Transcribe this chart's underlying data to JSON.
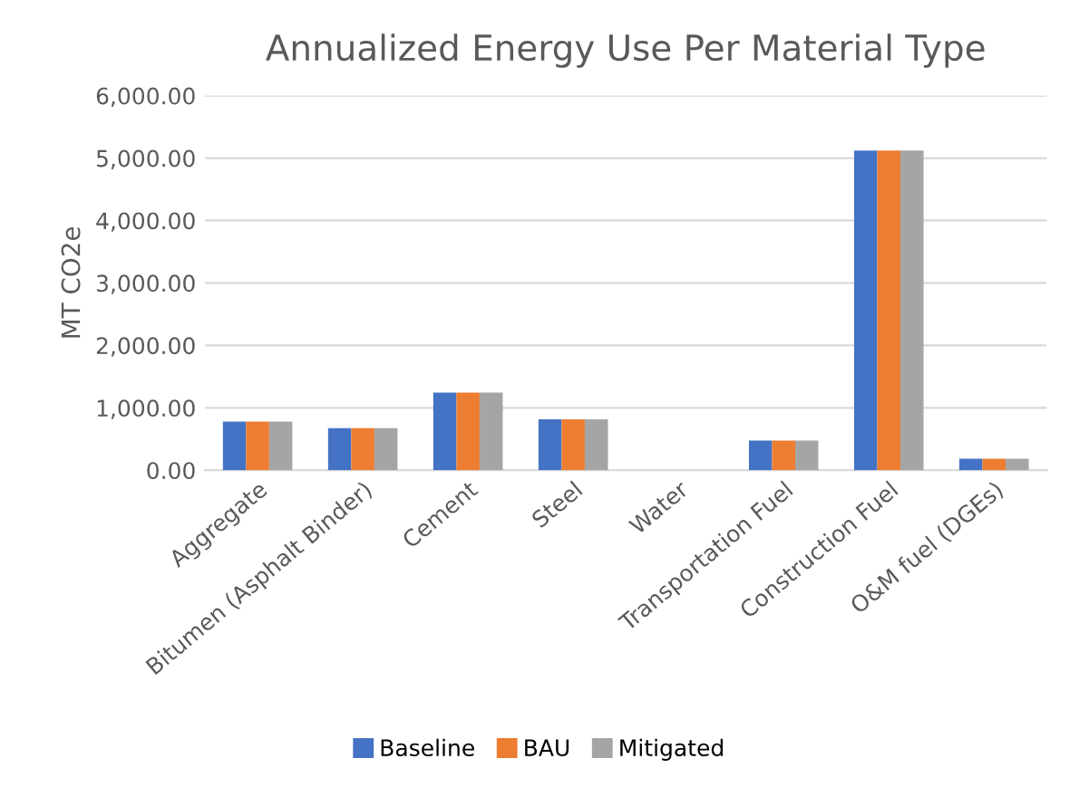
{
  "chart_data": {
    "type": "bar",
    "title": "Annualized Energy Use Per Material Type",
    "ylabel": "MT CO2e",
    "categories": [
      "Aggregate",
      "Bitumen (Asphalt Binder)",
      "Cement",
      "Steel",
      "Water",
      "Transportation Fuel",
      "Construction Fuel",
      "O&M fuel (DGEs)"
    ],
    "series": [
      {
        "name": "Baseline",
        "color": "#4472c4",
        "values": [
          780,
          675,
          1245,
          815,
          0,
          475,
          5120,
          185
        ]
      },
      {
        "name": "BAU",
        "color": "#ed7d31",
        "values": [
          780,
          675,
          1245,
          815,
          0,
          475,
          5120,
          185
        ]
      },
      {
        "name": "Mitigated",
        "color": "#a5a5a5",
        "values": [
          780,
          675,
          1245,
          815,
          0,
          475,
          5120,
          185
        ]
      }
    ],
    "ylim": [
      0,
      6000
    ],
    "yticks": [
      {
        "value": 0,
        "label": "0.00"
      },
      {
        "value": 1000,
        "label": "1,000.00"
      },
      {
        "value": 2000,
        "label": "2,000.00"
      },
      {
        "value": 3000,
        "label": "3,000.00"
      },
      {
        "value": 4000,
        "label": "4,000.00"
      },
      {
        "value": 5000,
        "label": "5,000.00"
      },
      {
        "value": 6000,
        "label": "6,000.00"
      }
    ],
    "grid": "y",
    "legend": "bottom"
  }
}
